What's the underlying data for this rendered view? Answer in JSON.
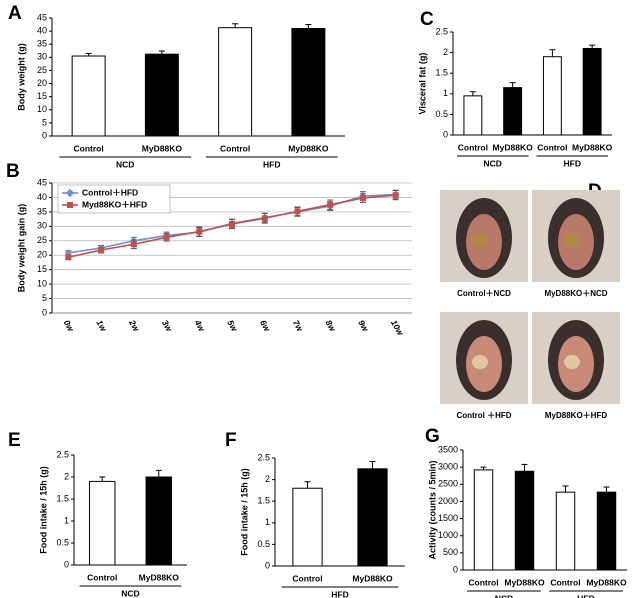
{
  "chart_data": [
    {
      "type": "bar",
      "panel": "A",
      "ylabel": "Body weight (g)",
      "categories": [
        "Control",
        "MyD88KO",
        "Control",
        "MyD88KO"
      ],
      "groups": [
        "NCD",
        "HFD"
      ],
      "values": [
        30.5,
        31.2,
        41.3,
        41.0
      ],
      "errors": [
        1.0,
        1.2,
        1.5,
        1.5
      ],
      "colors": [
        "#ffffff",
        "#000000",
        "#ffffff",
        "#000000"
      ],
      "ylim": [
        0,
        45
      ],
      "yticks": [
        0,
        5,
        10,
        15,
        20,
        25,
        30,
        35,
        40,
        45
      ]
    },
    {
      "type": "line",
      "panel": "B",
      "ylabel": "Body weight gain (g)",
      "categories": [
        "0w",
        "1w",
        "2w",
        "3w",
        "4w",
        "5w",
        "6w",
        "7w",
        "8w",
        "9w",
        "10w"
      ],
      "grid": true,
      "legend": "top-left",
      "series": [
        {
          "name": "Control＋HFD",
          "color": "#6f8fcf",
          "marker": "diamond",
          "values": [
            20.8,
            22.5,
            25.0,
            26.8,
            28.0,
            31.0,
            33.0,
            35.0,
            37.0,
            40.5,
            41.0
          ],
          "errors": [
            0.8,
            0.9,
            1.2,
            1.2,
            1.5,
            1.5,
            1.5,
            1.5,
            1.5,
            1.5,
            1.5
          ]
        },
        {
          "name": "Myd88KO＋HFD",
          "color": "#c0504d",
          "marker": "square",
          "values": [
            19.3,
            21.8,
            23.8,
            26.2,
            28.2,
            30.8,
            32.8,
            35.2,
            37.5,
            39.8,
            40.8
          ],
          "errors": [
            0.8,
            1.0,
            1.5,
            1.3,
            1.6,
            1.6,
            1.7,
            1.5,
            1.6,
            1.5,
            1.6
          ]
        }
      ],
      "ylim": [
        0,
        45
      ],
      "yticks": [
        0,
        5,
        10,
        15,
        20,
        25,
        30,
        35,
        40,
        45
      ]
    },
    {
      "type": "bar",
      "panel": "C",
      "ylabel": "Visceral  fat (g)",
      "categories": [
        "Control",
        "MyD88KO",
        "Control",
        "MyD88KO"
      ],
      "groups": [
        "NCD",
        "HFD"
      ],
      "values": [
        0.95,
        1.15,
        1.9,
        2.1
      ],
      "errors": [
        0.1,
        0.12,
        0.17,
        0.08
      ],
      "colors": [
        "#ffffff",
        "#000000",
        "#ffffff",
        "#000000"
      ],
      "ylim": [
        0,
        2.5
      ],
      "yticks": [
        0,
        0.5,
        1,
        1.5,
        2,
        2.5
      ]
    },
    {
      "type": "bar",
      "panel": "E",
      "ylabel": "Food intake / 15h (g)",
      "categories": [
        "Control",
        "MyD88KO"
      ],
      "groups": [
        "NCD"
      ],
      "values": [
        1.9,
        2.0
      ],
      "errors": [
        0.1,
        0.15
      ],
      "colors": [
        "#ffffff",
        "#000000"
      ],
      "ylim": [
        0,
        2.5
      ],
      "yticks": [
        0,
        0.5,
        1,
        1.5,
        2,
        2.5
      ]
    },
    {
      "type": "bar",
      "panel": "F",
      "ylabel": "Food intake / 15h (g)",
      "categories": [
        "Control",
        "MyD88KO"
      ],
      "groups": [
        "HFD"
      ],
      "values": [
        1.8,
        2.25
      ],
      "errors": [
        0.15,
        0.17
      ],
      "colors": [
        "#ffffff",
        "#000000"
      ],
      "ylim": [
        0,
        2.5
      ],
      "yticks": [
        0,
        0.5,
        1,
        1.5,
        2,
        2.5
      ]
    },
    {
      "type": "bar",
      "panel": "G",
      "ylabel": "Activity (counts / 5min)",
      "categories": [
        "Control",
        "MyD88KO",
        "Control",
        "MyD88KO"
      ],
      "groups": [
        "NCD",
        "HFD"
      ],
      "values": [
        2920,
        2880,
        2270,
        2270
      ],
      "errors": [
        80,
        200,
        180,
        150
      ],
      "colors": [
        "#ffffff",
        "#000000",
        "#ffffff",
        "#000000"
      ],
      "ylim": [
        0,
        3500
      ],
      "yticks": [
        0,
        500,
        1000,
        1500,
        2000,
        2500,
        3000,
        3500
      ]
    }
  ],
  "photos": {
    "panel": "D",
    "captions": [
      "Control＋NCD",
      "MyD88KO＋NCD",
      "Control ＋HFD",
      "MyD88KO＋HFD"
    ]
  }
}
